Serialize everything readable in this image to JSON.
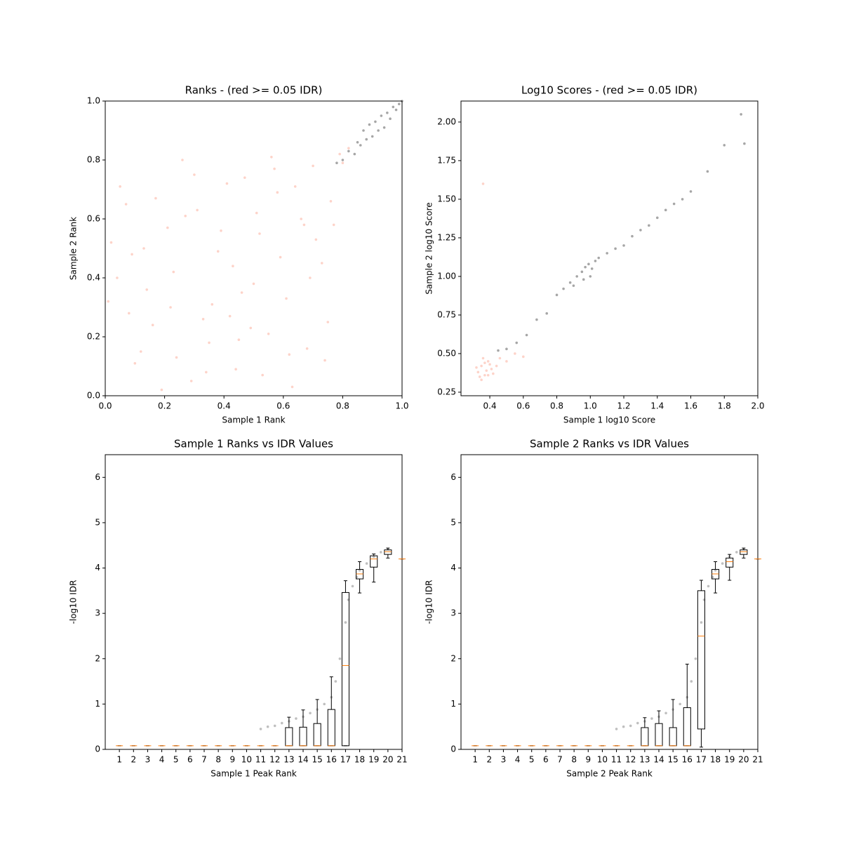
{
  "chart_data": [
    {
      "type": "scatter",
      "title": "Ranks - (red >= 0.05 IDR)",
      "xlabel": "Sample 1 Rank",
      "ylabel": "Sample 2 Rank",
      "xlim": [
        0,
        1
      ],
      "ylim": [
        0,
        1
      ],
      "xticks": [
        {
          "value": 0,
          "label": "0.0"
        },
        0.2,
        0.4,
        0.6,
        0.8,
        {
          "value": 1,
          "label": "1.0"
        }
      ],
      "yticks": [
        {
          "value": 0,
          "label": "0.0"
        },
        0.2,
        0.4,
        0.6,
        0.8,
        {
          "value": 1,
          "label": "1.0"
        }
      ],
      "series": [
        {
          "color": "#fa8064",
          "x": [
            0.05,
            0.12,
            0.23,
            0.31,
            0.44,
            0.52,
            0.61,
            0.7,
            0.08,
            0.17,
            0.29,
            0.38,
            0.47,
            0.55,
            0.66,
            0.74,
            0.02,
            0.14,
            0.26,
            0.35,
            0.43,
            0.58,
            0.63,
            0.77,
            0.1,
            0.21,
            0.33,
            0.41,
            0.5,
            0.59,
            0.68,
            0.79,
            0.04,
            0.19,
            0.27,
            0.36,
            0.49,
            0.57,
            0.71,
            0.8,
            0.07,
            0.16,
            0.24,
            0.39,
            0.46,
            0.53,
            0.64,
            0.73,
            0.01,
            0.13,
            0.3,
            0.42,
            0.51,
            0.62,
            0.69,
            0.76,
            0.09,
            0.22,
            0.34,
            0.45,
            0.56,
            0.67,
            0.75,
            0.82
          ],
          "values": [
            0.71,
            0.15,
            0.42,
            0.63,
            0.09,
            0.55,
            0.33,
            0.78,
            0.28,
            0.67,
            0.05,
            0.49,
            0.74,
            0.21,
            0.6,
            0.12,
            0.52,
            0.36,
            0.8,
            0.18,
            0.44,
            0.69,
            0.03,
            0.58,
            0.11,
            0.57,
            0.26,
            0.72,
            0.38,
            0.47,
            0.16,
            0.82,
            0.4,
            0.02,
            0.61,
            0.31,
            0.23,
            0.77,
            0.53,
            0.79,
            0.65,
            0.24,
            0.13,
            0.56,
            0.35,
            0.07,
            0.71,
            0.45,
            0.32,
            0.5,
            0.75,
            0.27,
            0.62,
            0.14,
            0.4,
            0.66,
            0.48,
            0.3,
            0.08,
            0.19,
            0.81,
            0.58,
            0.25,
            0.84
          ]
        },
        {
          "color": "#000000",
          "x": [
            0.78,
            0.8,
            0.82,
            0.84,
            0.85,
            0.86,
            0.87,
            0.88,
            0.89,
            0.9,
            0.91,
            0.92,
            0.93,
            0.94,
            0.95,
            0.96,
            0.97,
            0.98,
            0.99,
            1.0
          ],
          "values": [
            0.79,
            0.8,
            0.83,
            0.82,
            0.86,
            0.85,
            0.9,
            0.87,
            0.92,
            0.88,
            0.93,
            0.9,
            0.95,
            0.91,
            0.96,
            0.94,
            0.98,
            0.97,
            0.99,
            1.0
          ]
        }
      ]
    },
    {
      "type": "scatter",
      "title": "Log10 Scores - (red >= 0.05 IDR)",
      "xlabel": "Sample 1 log10 Score",
      "ylabel": "Sample 2 log10 Score",
      "xlim": [
        0.228,
        2.0
      ],
      "ylim": [
        0.227,
        2.136
      ],
      "xticks": [
        0.4,
        0.6,
        0.8,
        {
          "value": 1,
          "label": "1.0"
        },
        1.2,
        1.4,
        1.6,
        1.8,
        {
          "value": 2,
          "label": "2.0"
        }
      ],
      "yticks": [
        0.25,
        {
          "value": 0.5,
          "label": "0.50"
        },
        0.75,
        {
          "value": 1,
          "label": "1.00"
        },
        1.25,
        {
          "value": 1.5,
          "label": "1.50"
        },
        1.75,
        {
          "value": 2,
          "label": "2.00"
        }
      ],
      "series": [
        {
          "color": "#fa8064",
          "x": [
            0.33,
            0.35,
            0.37,
            0.39,
            0.41,
            0.34,
            0.36,
            0.38,
            0.4,
            0.42,
            0.32,
            0.35,
            0.37,
            0.39,
            0.44,
            0.46,
            0.5,
            0.55,
            0.6,
            0.36
          ],
          "values": [
            0.38,
            0.42,
            0.36,
            0.45,
            0.4,
            0.35,
            0.47,
            0.39,
            0.43,
            0.37,
            0.41,
            0.33,
            0.44,
            0.36,
            0.42,
            0.47,
            0.45,
            0.5,
            0.48,
            1.6
          ]
        },
        {
          "color": "#000000",
          "x": [
            0.45,
            0.5,
            0.56,
            0.62,
            0.68,
            0.74,
            0.8,
            0.84,
            0.88,
            0.92,
            0.95,
            0.97,
            0.99,
            1.01,
            1.03,
            1.05,
            0.96,
            1.0,
            0.9,
            1.1,
            1.15,
            1.2,
            1.25,
            1.3,
            1.35,
            1.4,
            1.45,
            1.5,
            1.55,
            1.6,
            1.7,
            1.8,
            1.9,
            1.92
          ],
          "values": [
            0.52,
            0.53,
            0.57,
            0.62,
            0.72,
            0.76,
            0.88,
            0.92,
            0.96,
            1.0,
            1.03,
            1.06,
            1.08,
            1.05,
            1.1,
            1.12,
            0.98,
            1.0,
            0.94,
            1.15,
            1.18,
            1.2,
            1.26,
            1.3,
            1.33,
            1.38,
            1.43,
            1.47,
            1.5,
            1.55,
            1.68,
            1.85,
            2.05,
            1.86
          ]
        }
      ]
    },
    {
      "type": "box",
      "title": "Sample 1 Ranks vs IDR Values",
      "xlabel": "Sample 1 Peak Rank",
      "ylabel": "-log10 IDR",
      "xlim": [
        0,
        21
      ],
      "ylim": [
        0,
        6.5
      ],
      "xticks": [
        1,
        2,
        3,
        4,
        5,
        6,
        7,
        8,
        9,
        10,
        11,
        12,
        13,
        14,
        15,
        16,
        17,
        18,
        19,
        20,
        21
      ],
      "yticks": [
        0,
        1,
        2,
        3,
        4,
        5,
        6
      ],
      "x": [
        1,
        2,
        3,
        4,
        5,
        6,
        7,
        8,
        9,
        10,
        11,
        12,
        13,
        14,
        15,
        16,
        17,
        18,
        19,
        20,
        21
      ],
      "low": [
        0.08,
        0.08,
        0.08,
        0.08,
        0.08,
        0.08,
        0.08,
        0.08,
        0.08,
        0.08,
        0.08,
        0.08,
        0.08,
        0.08,
        0.08,
        0.08,
        0.08,
        3.45,
        3.69,
        4.22,
        4.2
      ],
      "q1": [
        0.08,
        0.08,
        0.08,
        0.08,
        0.08,
        0.08,
        0.08,
        0.08,
        0.08,
        0.08,
        0.08,
        0.08,
        0.08,
        0.08,
        0.08,
        0.08,
        0.08,
        3.76,
        4.02,
        4.3,
        4.2
      ],
      "median": [
        0.08,
        0.08,
        0.08,
        0.08,
        0.08,
        0.08,
        0.08,
        0.08,
        0.08,
        0.08,
        0.08,
        0.08,
        0.08,
        0.08,
        0.08,
        0.08,
        1.85,
        3.87,
        4.2,
        4.36,
        4.2
      ],
      "q3": [
        0.08,
        0.08,
        0.08,
        0.08,
        0.08,
        0.08,
        0.08,
        0.08,
        0.08,
        0.08,
        0.08,
        0.08,
        0.48,
        0.49,
        0.57,
        0.88,
        3.46,
        3.97,
        4.27,
        4.4,
        4.2
      ],
      "high": [
        0.08,
        0.08,
        0.08,
        0.08,
        0.08,
        0.08,
        0.08,
        0.08,
        0.08,
        0.08,
        0.08,
        0.08,
        0.71,
        0.87,
        1.1,
        1.6,
        3.72,
        4.14,
        4.31,
        4.44,
        4.2
      ],
      "points": {
        "x": [
          11,
          11.5,
          12,
          12.5,
          13,
          13.5,
          14,
          14.5,
          15,
          15.5,
          16,
          16.3,
          16.6,
          17,
          17.2,
          17.5,
          17.8,
          18,
          18.5,
          19,
          19.5,
          20
        ],
        "values": [
          0.45,
          0.5,
          0.52,
          0.58,
          0.62,
          0.68,
          0.72,
          0.8,
          0.88,
          1.0,
          1.15,
          1.5,
          2.0,
          2.8,
          3.3,
          3.6,
          3.8,
          3.95,
          4.1,
          4.25,
          4.35,
          4.42
        ]
      }
    },
    {
      "type": "box",
      "title": "Sample 2 Ranks vs IDR Values",
      "xlabel": "Sample 2 Peak Rank",
      "ylabel": "-log10 IDR",
      "xlim": [
        0,
        21
      ],
      "ylim": [
        0,
        6.5
      ],
      "xticks": [
        1,
        2,
        3,
        4,
        5,
        6,
        7,
        8,
        9,
        10,
        11,
        12,
        13,
        14,
        15,
        16,
        17,
        18,
        19,
        20,
        21
      ],
      "yticks": [
        0,
        1,
        2,
        3,
        4,
        5,
        6
      ],
      "x": [
        1,
        2,
        3,
        4,
        5,
        6,
        7,
        8,
        9,
        10,
        11,
        12,
        13,
        14,
        15,
        16,
        17,
        18,
        19,
        20,
        21
      ],
      "low": [
        0.08,
        0.08,
        0.08,
        0.08,
        0.08,
        0.08,
        0.08,
        0.08,
        0.08,
        0.08,
        0.08,
        0.08,
        0.08,
        0.08,
        0.08,
        0.08,
        0.05,
        3.45,
        3.73,
        4.22,
        4.2
      ],
      "q1": [
        0.08,
        0.08,
        0.08,
        0.08,
        0.08,
        0.08,
        0.08,
        0.08,
        0.08,
        0.08,
        0.08,
        0.08,
        0.08,
        0.08,
        0.08,
        0.08,
        0.45,
        3.76,
        4.02,
        4.3,
        4.2
      ],
      "median": [
        0.08,
        0.08,
        0.08,
        0.08,
        0.08,
        0.08,
        0.08,
        0.08,
        0.08,
        0.08,
        0.08,
        0.08,
        0.08,
        0.08,
        0.08,
        0.08,
        2.5,
        3.87,
        4.14,
        4.36,
        4.2
      ],
      "q3": [
        0.08,
        0.08,
        0.08,
        0.08,
        0.08,
        0.08,
        0.08,
        0.08,
        0.08,
        0.08,
        0.08,
        0.08,
        0.48,
        0.57,
        0.48,
        0.92,
        3.5,
        3.97,
        4.22,
        4.4,
        4.2
      ],
      "high": [
        0.08,
        0.08,
        0.08,
        0.08,
        0.08,
        0.08,
        0.08,
        0.08,
        0.08,
        0.08,
        0.08,
        0.08,
        0.7,
        0.85,
        1.1,
        1.88,
        3.73,
        4.14,
        4.3,
        4.44,
        4.2
      ],
      "points": {
        "x": [
          11,
          11.5,
          12,
          12.5,
          13,
          13.5,
          14,
          14.5,
          15,
          15.5,
          16,
          16.3,
          16.6,
          17,
          17.2,
          17.5,
          17.8,
          18,
          18.5,
          19,
          19.5,
          20
        ],
        "values": [
          0.45,
          0.5,
          0.52,
          0.58,
          0.62,
          0.68,
          0.72,
          0.8,
          0.88,
          1.0,
          1.15,
          1.5,
          2.0,
          2.8,
          3.3,
          3.6,
          3.8,
          3.95,
          4.1,
          4.25,
          4.35,
          4.42
        ]
      }
    }
  ]
}
